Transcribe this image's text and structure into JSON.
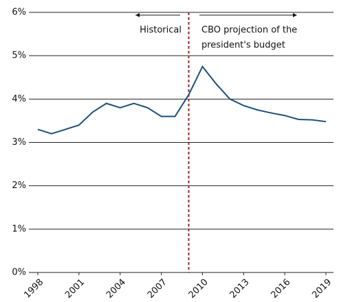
{
  "chart_data": {
    "type": "line",
    "x": [
      1998,
      1999,
      2000,
      2001,
      2002,
      2003,
      2004,
      2005,
      2006,
      2007,
      2008,
      2009,
      2010,
      2011,
      2012,
      2013,
      2014,
      2015,
      2016,
      2017,
      2018,
      2019
    ],
    "series": [
      {
        "color": "#1a4f7a",
        "values": [
          3.3,
          3.2,
          3.3,
          3.4,
          3.7,
          3.9,
          3.8,
          3.9,
          3.8,
          3.6,
          3.6,
          4.1,
          4.75,
          4.35,
          4.0,
          3.85,
          3.75,
          3.68,
          3.62,
          3.53,
          3.52,
          3.48
        ]
      }
    ],
    "xlim": [
      1998,
      2019
    ],
    "xticks": [
      1998,
      2001,
      2004,
      2007,
      2010,
      2013,
      2016,
      2019
    ],
    "ylim": [
      0,
      6
    ],
    "yticks": [
      {
        "value": 0,
        "label": "0%"
      },
      {
        "value": 1,
        "label": "1%"
      },
      {
        "value": 2,
        "label": "2%"
      },
      {
        "value": 3,
        "label": "3%"
      },
      {
        "value": 4,
        "label": "4%"
      },
      {
        "value": 5,
        "label": "5%"
      },
      {
        "value": 6,
        "label": "6%"
      }
    ],
    "grid": true,
    "divider": {
      "x": 2009,
      "color": "#a0282d"
    },
    "annotations": {
      "left": "Historical",
      "right": [
        "CBO projection of the",
        "president's budget"
      ]
    }
  }
}
